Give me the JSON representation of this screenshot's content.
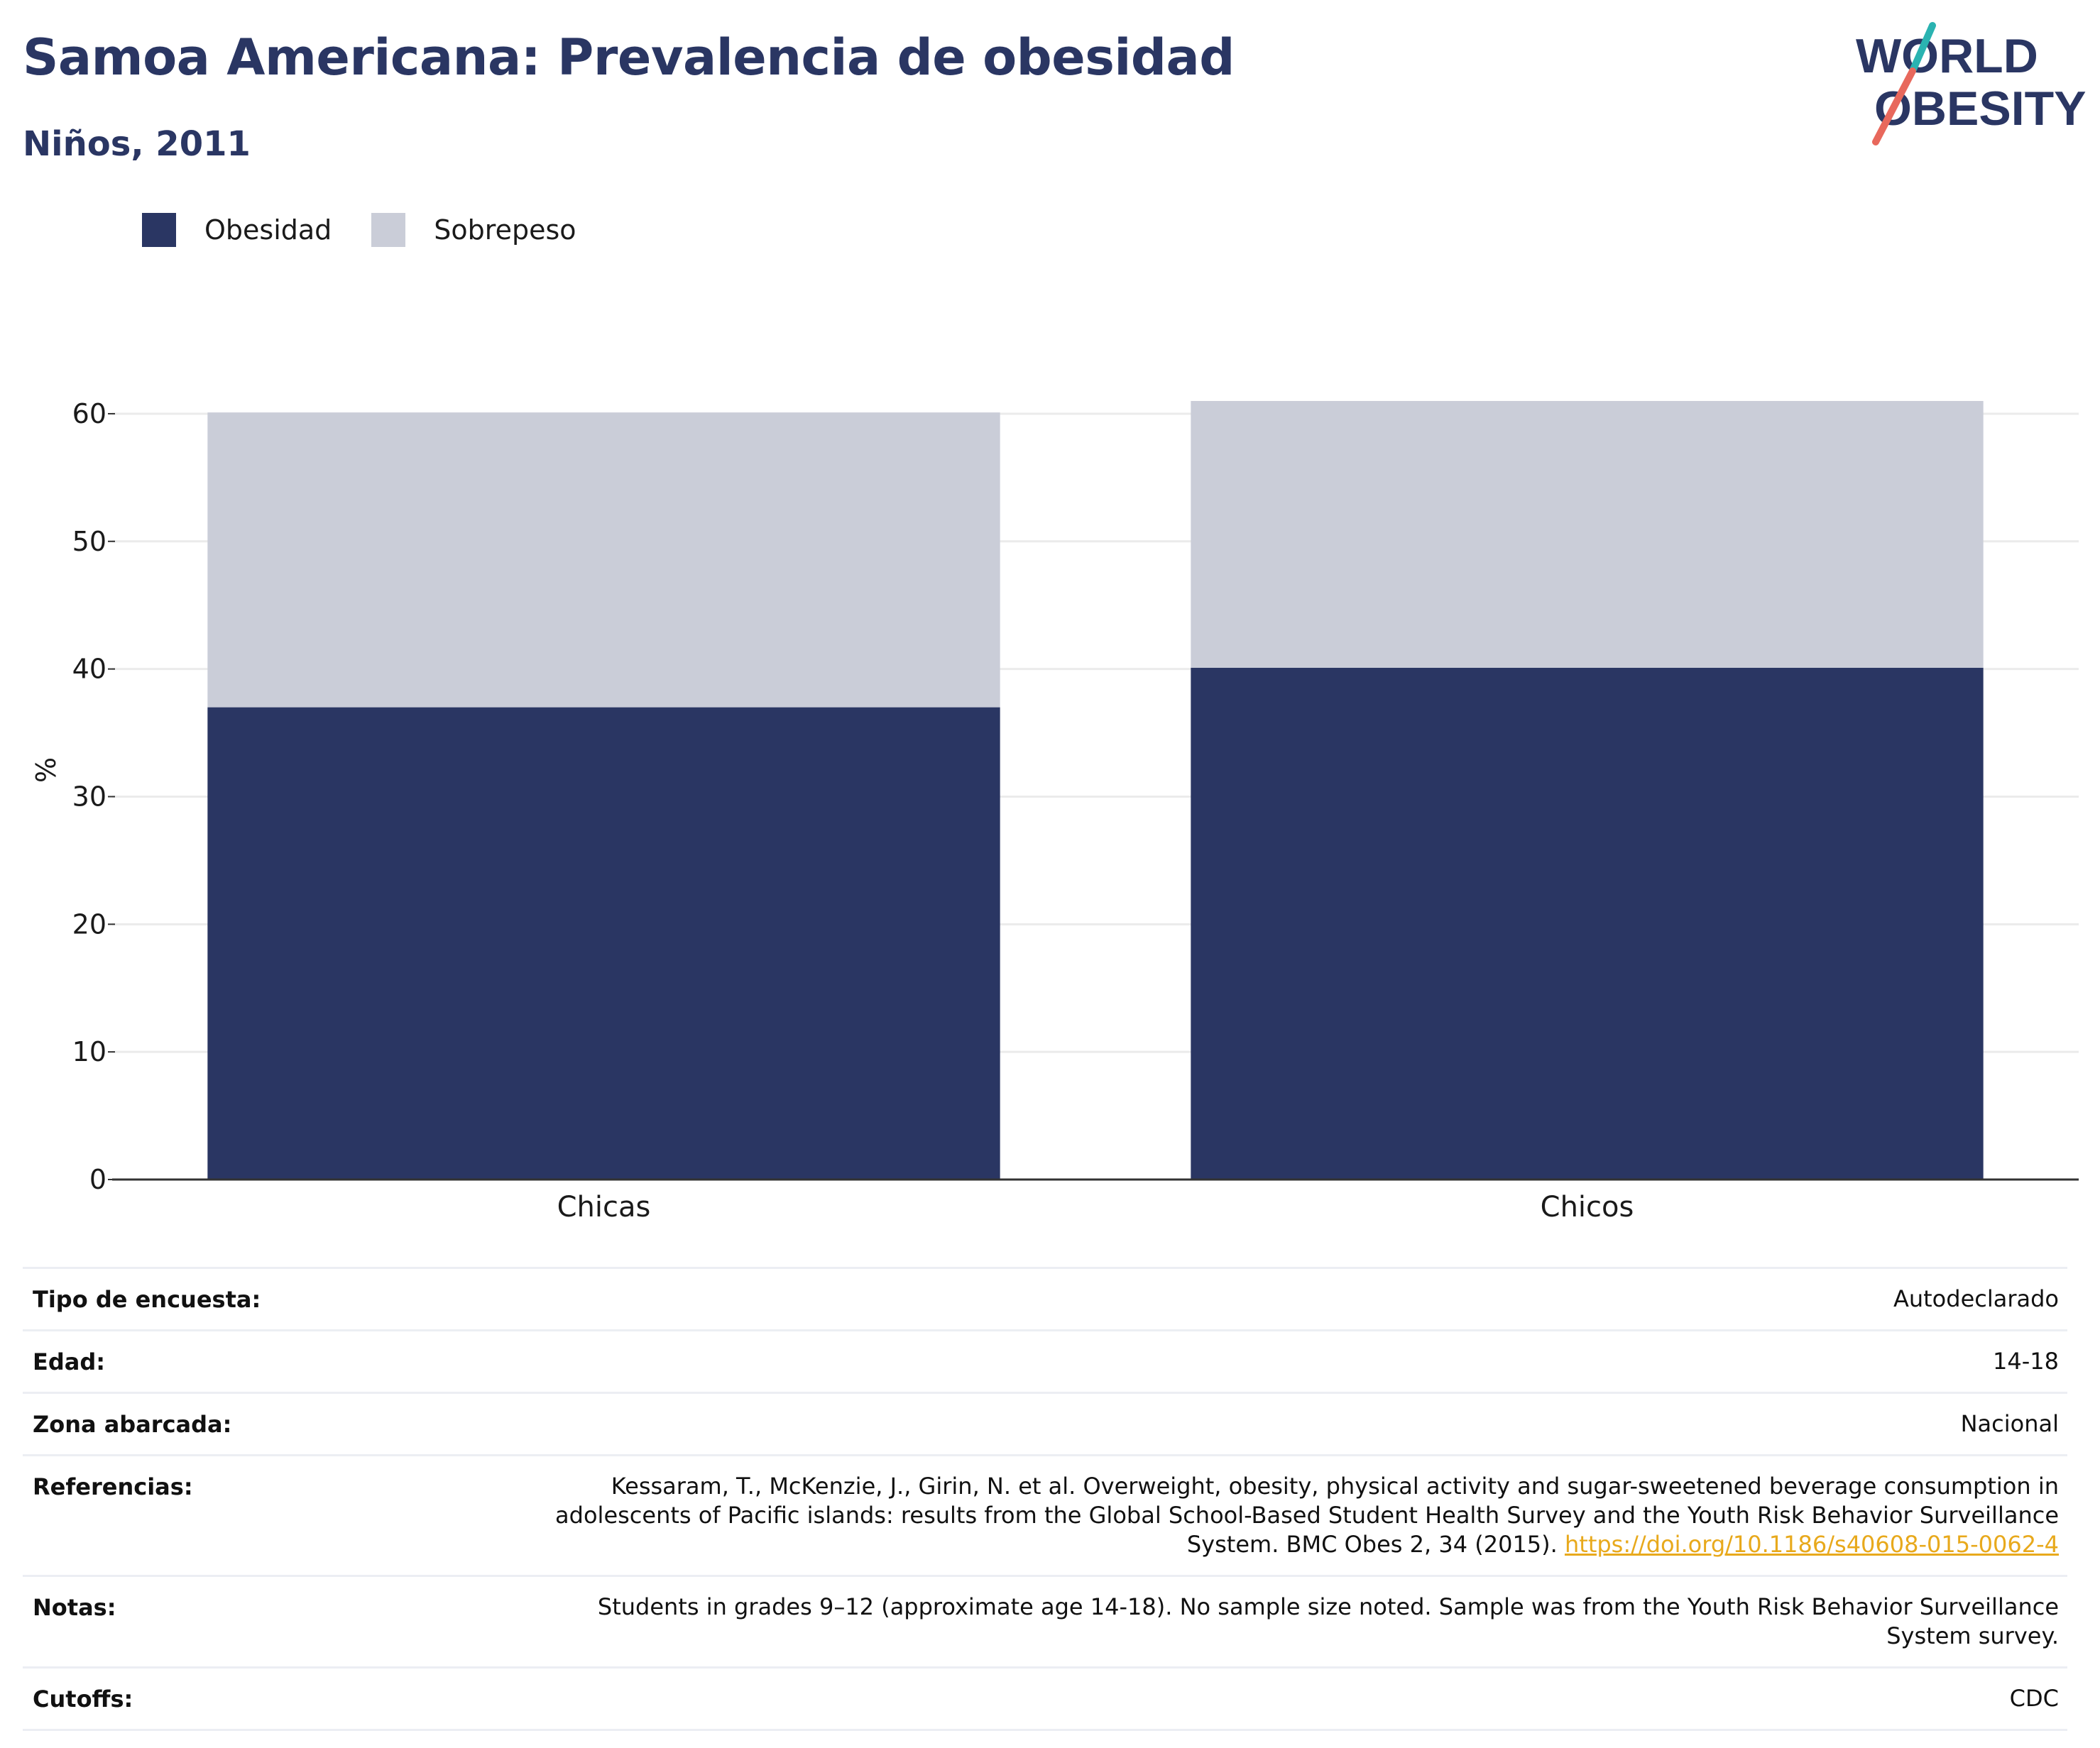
{
  "header": {
    "title": "Samoa Americana: Prevalencia de obesidad",
    "subtitle": "Niños, 2011"
  },
  "logo": {
    "line1": "WORLD",
    "line2": "OBESITY",
    "colors": {
      "text": "#2a3663",
      "slash_top": "#2ab3b1",
      "slash_bottom": "#e8685c"
    }
  },
  "legend": [
    {
      "label": "Obesidad",
      "color": "#2a3663"
    },
    {
      "label": "Sobrepeso",
      "color": "#cacdd8"
    }
  ],
  "chart_data": {
    "type": "bar",
    "stacked": true,
    "categories": [
      "Chicas",
      "Chicos"
    ],
    "series": [
      {
        "name": "Obesidad",
        "values": [
          37,
          40.1
        ],
        "color": "#2a3663"
      },
      {
        "name": "Sobrepeso",
        "values": [
          23.1,
          20.9
        ],
        "color": "#cacdd8"
      }
    ],
    "ylabel": "%",
    "ylim": [
      0,
      63
    ],
    "yticks": [
      0,
      10,
      20,
      30,
      40,
      50,
      60
    ],
    "grid": true
  },
  "info": [
    {
      "label": "Tipo de encuesta:",
      "value": "Autodeclarado"
    },
    {
      "label": "Edad:",
      "value": "14-18"
    },
    {
      "label": "Zona abarcada:",
      "value": "Nacional"
    },
    {
      "label": "Referencias:",
      "value": "Kessaram, T., McKenzie, J., Girin, N. et al. Overweight, obesity, physical activity and sugar-sweetened beverage consumption in adolescents of Pacific islands: results from the Global School-Based Student Health Survey and the Youth Risk Behavior Surveillance System. BMC Obes 2, 34 (2015).",
      "link": "https://doi.org/10.1186/s40608-015-0062-4"
    },
    {
      "label": "Notas:",
      "value": "Students in grades 9–12 (approximate age 14-18). No sample size noted. Sample was from the Youth Risk Behavior Surveillance System survey."
    },
    {
      "label": "Cutoffs:",
      "value": "CDC"
    }
  ]
}
